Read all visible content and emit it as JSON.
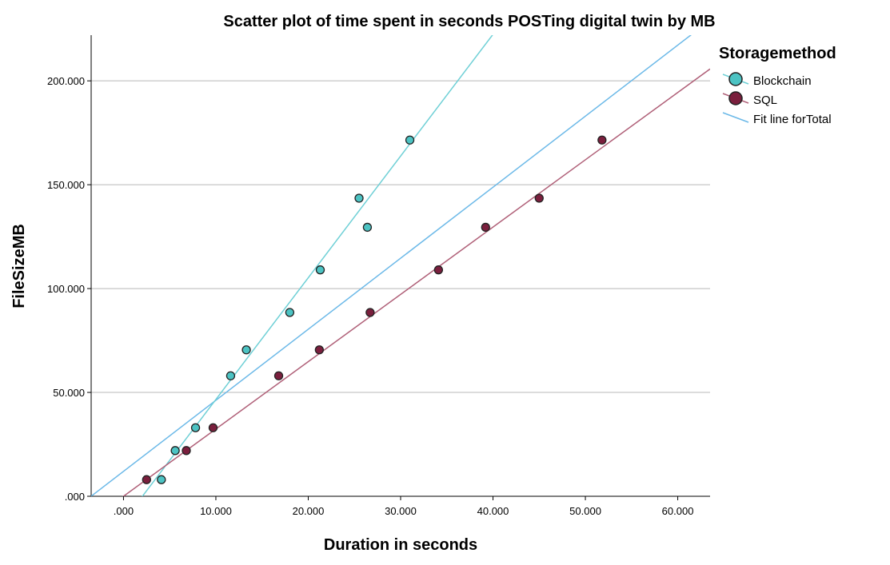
{
  "chart_data": {
    "type": "scatter",
    "title": "Scatter plot of time spent in seconds POSTing digital twin by MB",
    "xlabel": "Duration in seconds",
    "ylabel": "FileSizeMB",
    "xlim": [
      -3.5,
      63.5
    ],
    "ylim": [
      0,
      222
    ],
    "x_ticks": [
      0,
      10,
      20,
      30,
      40,
      50,
      60
    ],
    "x_tick_labels": [
      ".000",
      "10.000",
      "20.000",
      "30.000",
      "40.000",
      "50.000",
      "60.000"
    ],
    "y_ticks": [
      0,
      50,
      100,
      150,
      200
    ],
    "y_tick_labels": [
      ".000",
      "50.000",
      "100.000",
      "150.000",
      "200.000"
    ],
    "grid": "horizontal",
    "legend": {
      "title": "Storagemethod",
      "placement": "right",
      "fit_label": "Fit line forTotal"
    },
    "series": [
      {
        "name": "Blockchain",
        "color": "#4cc3c3",
        "line_color": "#6fd0d6",
        "points": [
          {
            "x": 4.1,
            "y": 8.0
          },
          {
            "x": 5.6,
            "y": 22.0
          },
          {
            "x": 7.8,
            "y": 33.0
          },
          {
            "x": 11.6,
            "y": 58.0
          },
          {
            "x": 13.3,
            "y": 70.5
          },
          {
            "x": 18.0,
            "y": 88.5
          },
          {
            "x": 21.3,
            "y": 109.0
          },
          {
            "x": 25.5,
            "y": 143.5
          },
          {
            "x": 26.4,
            "y": 129.5
          },
          {
            "x": 31.0,
            "y": 171.5
          }
        ],
        "fit": {
          "slope": 5.86,
          "intercept": -12.0
        }
      },
      {
        "name": "SQL",
        "color": "#7a1f3d",
        "line_color": "#b06078",
        "points": [
          {
            "x": 2.5,
            "y": 8.0
          },
          {
            "x": 6.8,
            "y": 22.0
          },
          {
            "x": 9.7,
            "y": 33.0
          },
          {
            "x": 16.8,
            "y": 58.0
          },
          {
            "x": 21.2,
            "y": 70.5
          },
          {
            "x": 26.7,
            "y": 88.5
          },
          {
            "x": 34.1,
            "y": 109.0
          },
          {
            "x": 39.2,
            "y": 129.5
          },
          {
            "x": 45.0,
            "y": 143.5
          },
          {
            "x": 51.8,
            "y": 171.5
          }
        ],
        "fit": {
          "slope": 3.24,
          "intercept": 0.0
        }
      }
    ],
    "total_fit": {
      "color": "#6cb9e8",
      "slope": 3.42,
      "intercept": 12.0
    }
  }
}
